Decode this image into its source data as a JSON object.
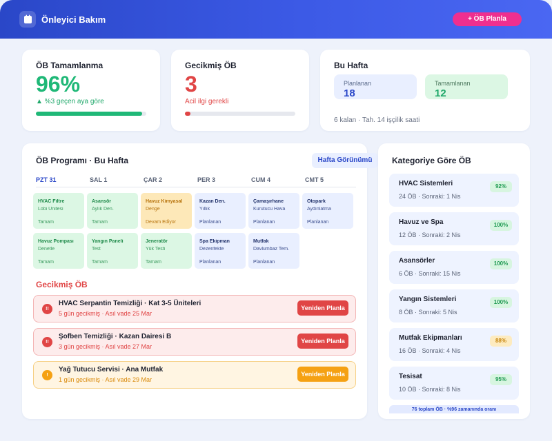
{
  "header": {
    "app_title": "Önleyici Bakım",
    "new_button": "+ ÖB Planla",
    "accent": "#2a47c8",
    "button_color": "#ef2f8f"
  },
  "kpis": {
    "completion": {
      "title": "ÖB Tamamlanma",
      "value": "96%",
      "delta": "▲ %3 geçen aya göre",
      "progress_fraction": 0.96,
      "color": "#1fb877"
    },
    "overdue": {
      "title": "Gecikmiş ÖB",
      "value": "3",
      "note": "Acil ilgi gerekli",
      "progress_fraction": 0.05,
      "color": "#e04545"
    },
    "week": {
      "title": "Bu Hafta",
      "planned_label": "Planlanan",
      "planned_value": "18",
      "completed_label": "Tamamlanan",
      "completed_value": "12",
      "footer": "6 kalan · Tah. 14 işçilik saati"
    }
  },
  "schedule": {
    "title": "ÖB Programı · Bu Hafta",
    "view_button": "Hafta Görünümü",
    "days": [
      "PZT 31",
      "SAL 1",
      "ÇAR 2",
      "PER 3",
      "CUM 4",
      "CMT 5"
    ],
    "active_day": 0,
    "tasks": [
      [
        {
          "name": "HVAC Filtre",
          "location": "Lobi Ünitesi",
          "status": "Tamam",
          "state": "done"
        },
        {
          "name": "Havuz Pompası",
          "location": "Denetle",
          "status": "Tamam",
          "state": "done"
        }
      ],
      [
        {
          "name": "Asansör",
          "location": "Aylık Den.",
          "status": "Tamam",
          "state": "done"
        },
        {
          "name": "Yangın Paneli",
          "location": "Test",
          "status": "Tamam",
          "state": "done"
        }
      ],
      [
        {
          "name": "Havuz Kimyasal",
          "location": "Denge",
          "status": "Devam Ediyor",
          "state": "prog"
        },
        {
          "name": "Jeneratör",
          "location": "Yük Testi",
          "status": "Tamam",
          "state": "done"
        }
      ],
      [
        {
          "name": "Kazan Den.",
          "location": "Yıllık",
          "status": "Planlanan",
          "state": "plan"
        },
        {
          "name": "Spa Ekipman",
          "location": "Dezenfekte",
          "status": "Planlanan",
          "state": "plan"
        }
      ],
      [
        {
          "name": "Çamaşırhane",
          "location": "Kurutucu Hava",
          "status": "Planlanan",
          "state": "plan"
        },
        {
          "name": "Mutfak",
          "location": "Davlumbaz Tem.",
          "status": "Planlanan",
          "state": "plan"
        }
      ],
      [
        {
          "name": "Otopark",
          "location": "Aydınlatma",
          "status": "Planlanan",
          "state": "plan"
        }
      ]
    ]
  },
  "overdue_list": {
    "title": "Gecikmiş ÖB",
    "items": [
      {
        "name": "HVAC Serpantin Temizliği · Kat 3-5 Üniteleri",
        "meta": "5 gün gecikmiş · Asıl vade 25 Mar",
        "button": "Yeniden Planla",
        "icon": "!!",
        "severity": "red"
      },
      {
        "name": "Şofben Temizliği · Kazan Dairesi B",
        "meta": "3 gün gecikmiş · Asıl vade 27 Mar",
        "button": "Yeniden Planla",
        "icon": "!!",
        "severity": "red"
      },
      {
        "name": "Yağ Tutucu Servisi · Ana Mutfak",
        "meta": "1 gün gecikmiş · Asıl vade 29 Mar",
        "button": "Yeniden Planla",
        "icon": "!",
        "severity": "amber"
      }
    ]
  },
  "categories": {
    "title": "Kategoriye Göre ÖB",
    "items": [
      {
        "name": "HVAC Sistemleri",
        "meta": "24 ÖB · Sonraki: 1 Nis",
        "badge": "92%",
        "tone": "green"
      },
      {
        "name": "Havuz ve Spa",
        "meta": "12 ÖB · Sonraki: 2 Nis",
        "badge": "100%",
        "tone": "green"
      },
      {
        "name": "Asansörler",
        "meta": "6 ÖB · Sonraki: 15 Nis",
        "badge": "100%",
        "tone": "green"
      },
      {
        "name": "Yangın Sistemleri",
        "meta": "8 ÖB · Sonraki: 5 Nis",
        "badge": "100%",
        "tone": "green"
      },
      {
        "name": "Mutfak Ekipmanları",
        "meta": "16 ÖB · Sonraki: 4 Nis",
        "badge": "88%",
        "tone": "amber"
      },
      {
        "name": "Tesisat",
        "meta": "10 ÖB · Sonraki: 8 Nis",
        "badge": "95%",
        "tone": "green"
      }
    ],
    "footer": "76 toplam ÖB · %96 zamanında oranı"
  },
  "icons": {
    "logo": "clipboard-icon",
    "overdue_red": "alert-icon",
    "overdue_amber": "warning-icon"
  }
}
